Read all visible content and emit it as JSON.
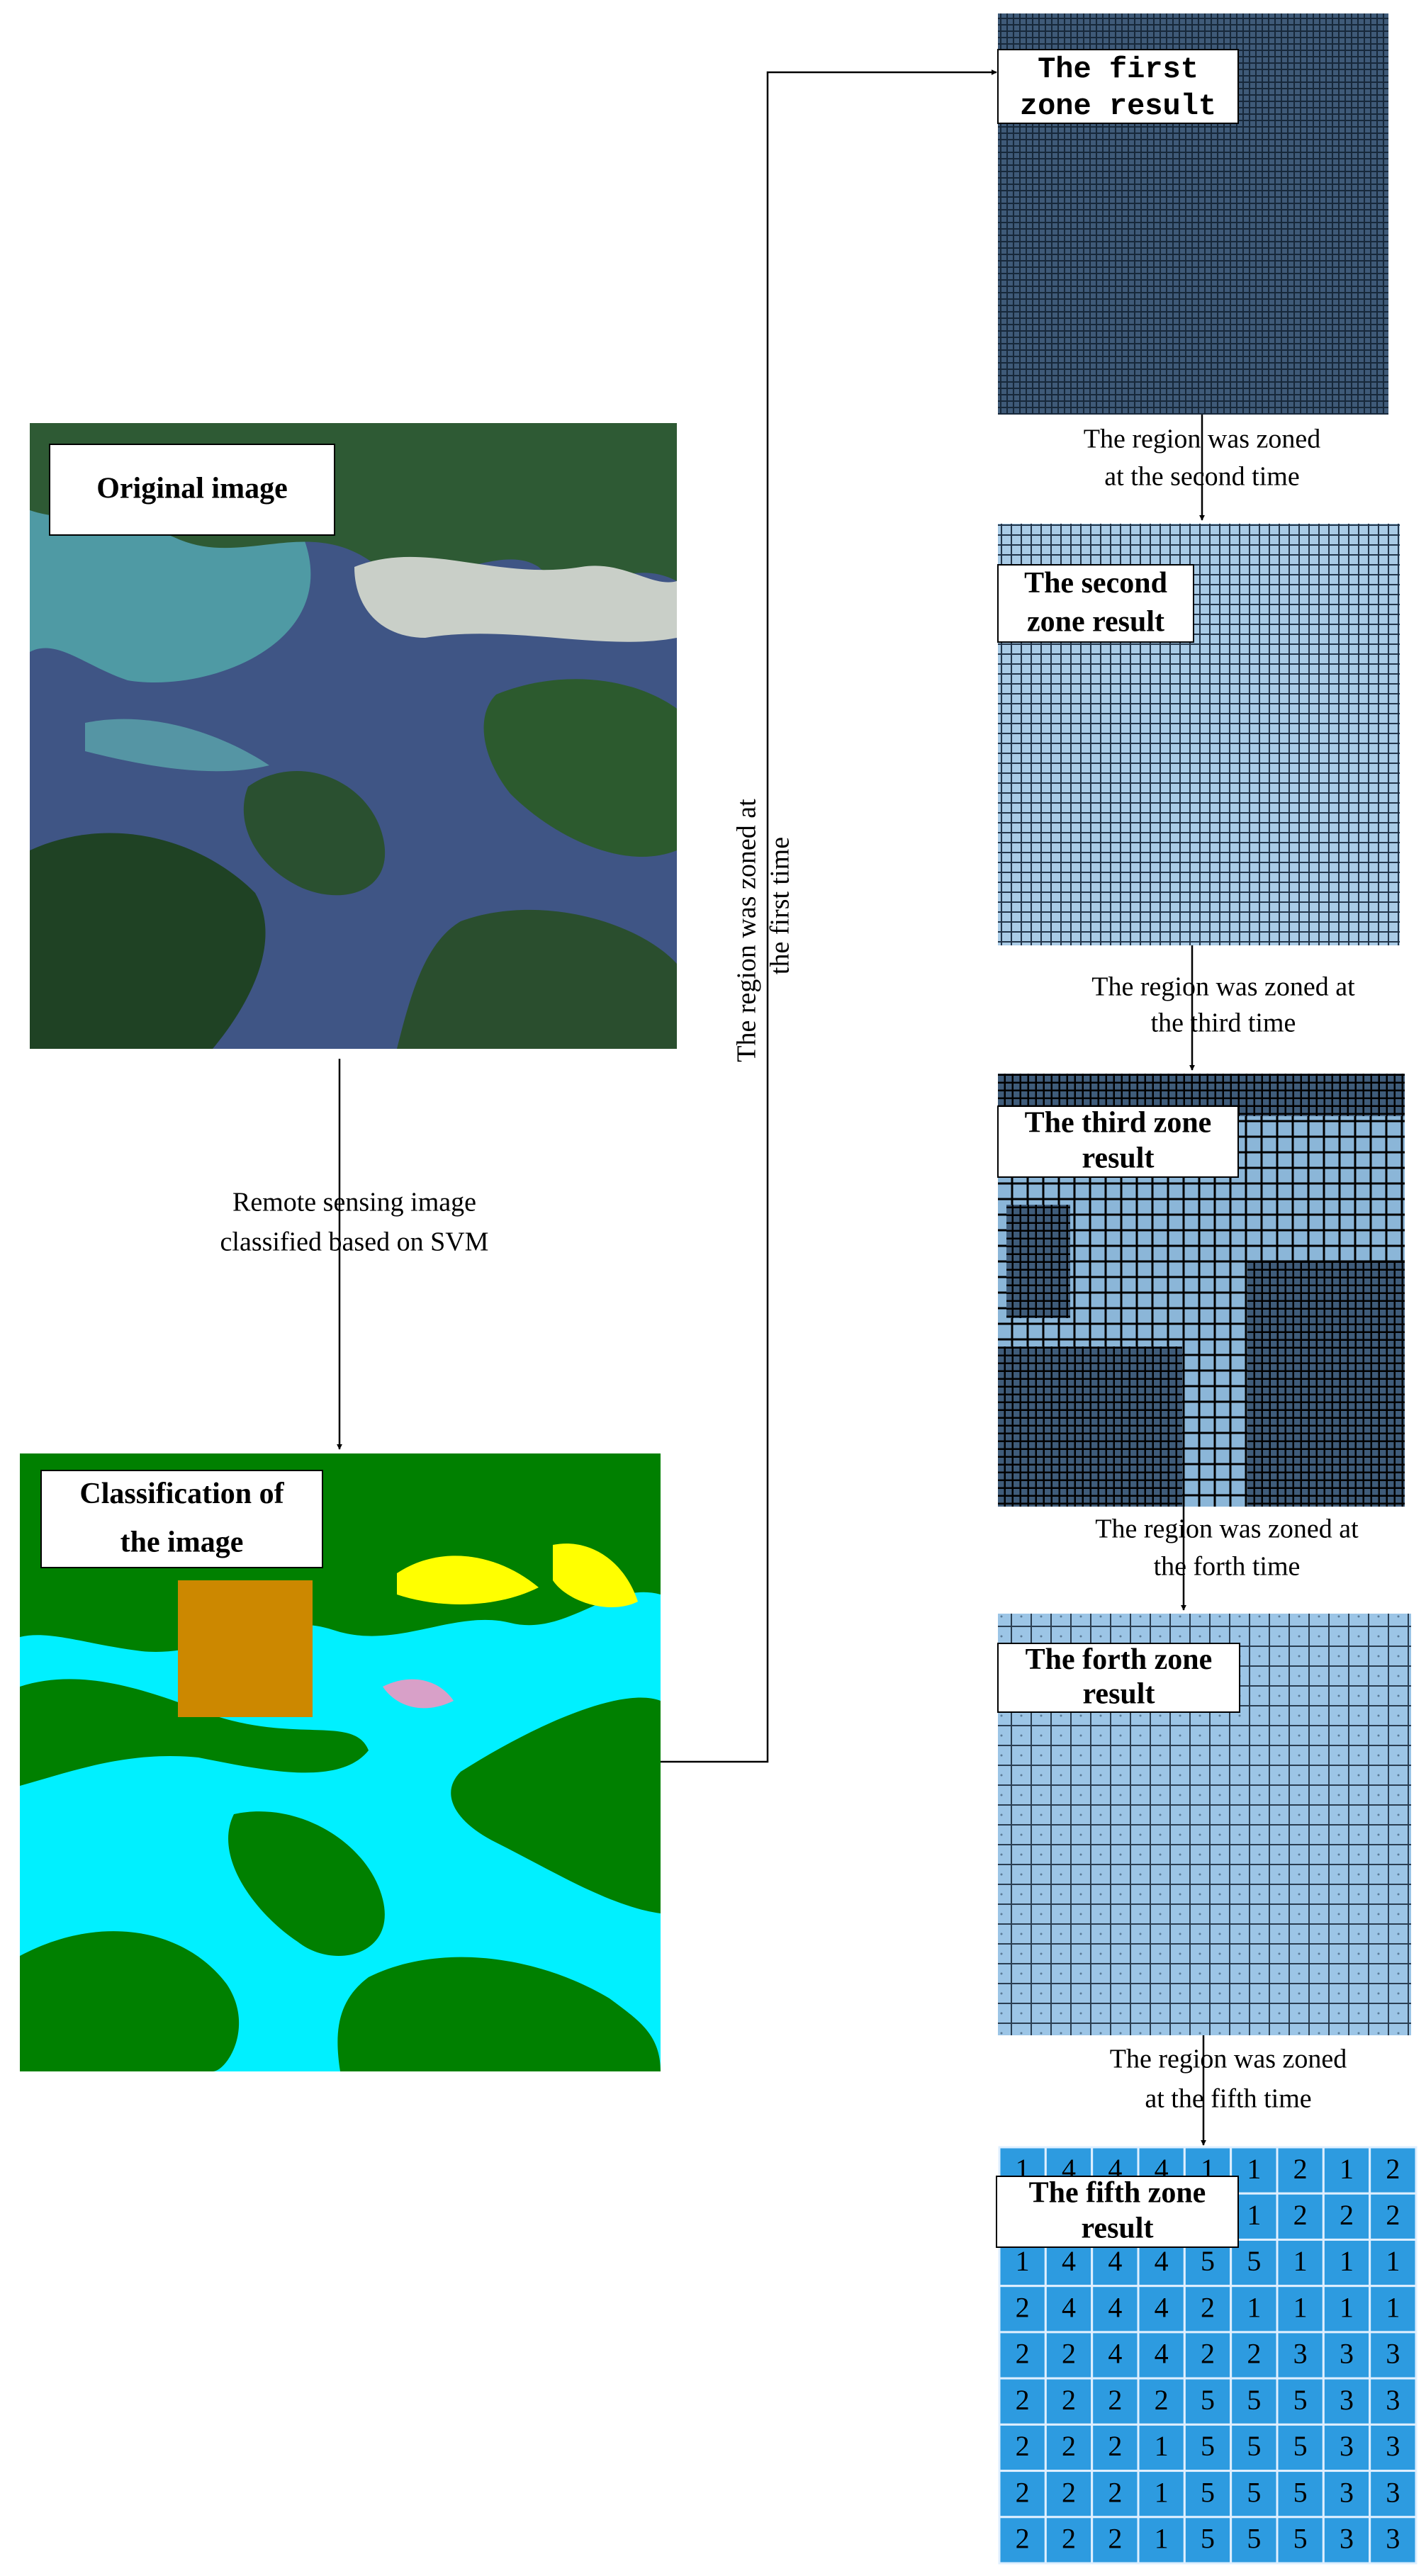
{
  "original_image": {
    "label": "Original image"
  },
  "classification_arrow": {
    "lines": [
      "Remote sensing image",
      "classified based on SVM"
    ]
  },
  "classified_image": {
    "label": [
      "Classification of",
      "the image"
    ]
  },
  "first_zoning_arrow": {
    "lines": [
      "The region was zoned at",
      "the first time"
    ]
  },
  "zones": [
    {
      "label": [
        "The first",
        "zone result"
      ]
    },
    {
      "label": [
        "The second",
        "zone result"
      ],
      "arrow": [
        "The region was zoned",
        "at the second time"
      ]
    },
    {
      "label": [
        "The third zone",
        "result"
      ],
      "arrow": [
        "The region was zoned at",
        "the third time"
      ]
    },
    {
      "label": [
        "The forth zone",
        "result"
      ],
      "arrow": [
        "The region was zoned at",
        "the forth time"
      ]
    },
    {
      "label": [
        "The fifth zone",
        "result"
      ],
      "arrow": [
        "The region was zoned",
        "at the fifth time"
      ]
    }
  ],
  "fifth_zone_grid": [
    [
      1,
      4,
      4,
      4,
      1,
      1,
      2,
      1,
      2
    ],
    [
      null,
      null,
      null,
      null,
      null,
      1,
      2,
      2,
      2
    ],
    [
      1,
      4,
      4,
      4,
      5,
      5,
      1,
      1,
      1
    ],
    [
      2,
      4,
      4,
      4,
      2,
      1,
      1,
      1,
      1
    ],
    [
      2,
      2,
      4,
      4,
      2,
      2,
      3,
      3,
      3
    ],
    [
      2,
      2,
      2,
      2,
      5,
      5,
      5,
      3,
      3
    ],
    [
      2,
      2,
      2,
      1,
      5,
      5,
      5,
      3,
      3
    ],
    [
      2,
      2,
      2,
      1,
      5,
      5,
      5,
      3,
      3
    ],
    [
      2,
      2,
      2,
      1,
      5,
      5,
      5,
      3,
      3
    ]
  ]
}
